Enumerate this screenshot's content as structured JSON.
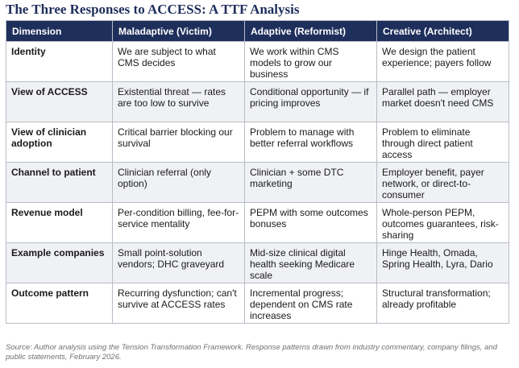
{
  "title": "The Three Responses to ACCESS: A TTF Analysis",
  "table": {
    "headers": [
      "Dimension",
      "Maladaptive (Victim)",
      "Adaptive (Reformist)",
      "Creative (Architect)"
    ],
    "rows": [
      [
        "Identity",
        "We are subject to what CMS decides",
        "We work within CMS models to grow our business",
        "We design the patient experience; payers follow"
      ],
      [
        "View of ACCESS",
        "Existential threat — rates are too low to survive",
        "Conditional opportunity — if pricing improves",
        "Parallel path — employer market doesn't need CMS"
      ],
      [
        "View of clinician adoption",
        "Critical barrier blocking our survival",
        "Problem to manage with better referral workflows",
        "Problem to eliminate through direct patient access"
      ],
      [
        "Channel to patient",
        "Clinician referral (only option)",
        "Clinician + some DTC marketing",
        "Employer benefit, payer network, or direct-to-consumer"
      ],
      [
        "Revenue model",
        "Per-condition billing, fee-for-service mentality",
        "PEPM with some outcomes bonuses",
        "Whole-person PEPM, outcomes guarantees, risk-sharing"
      ],
      [
        "Example companies",
        "Small point-solution vendors; DHC graveyard",
        "Mid-size clinical digital health seeking Medicare scale",
        "Hinge Health, Omada, Spring Health, Lyra, Dario"
      ],
      [
        "Outcome pattern",
        "Recurring dysfunction; can't survive at ACCESS rates",
        "Incremental progress; dependent on CMS rate increases",
        "Structural transformation; already profitable"
      ]
    ]
  },
  "source": "Source: Author analysis using the Tension Transformation Framework. Response patterns drawn from industry commentary, company filings, and public statements, February 2026.",
  "colors": {
    "header_bg": "#1f2f5c",
    "title": "#1f2f5c",
    "alt_row": "#f0f1f4",
    "border": "#b8bcc6"
  }
}
